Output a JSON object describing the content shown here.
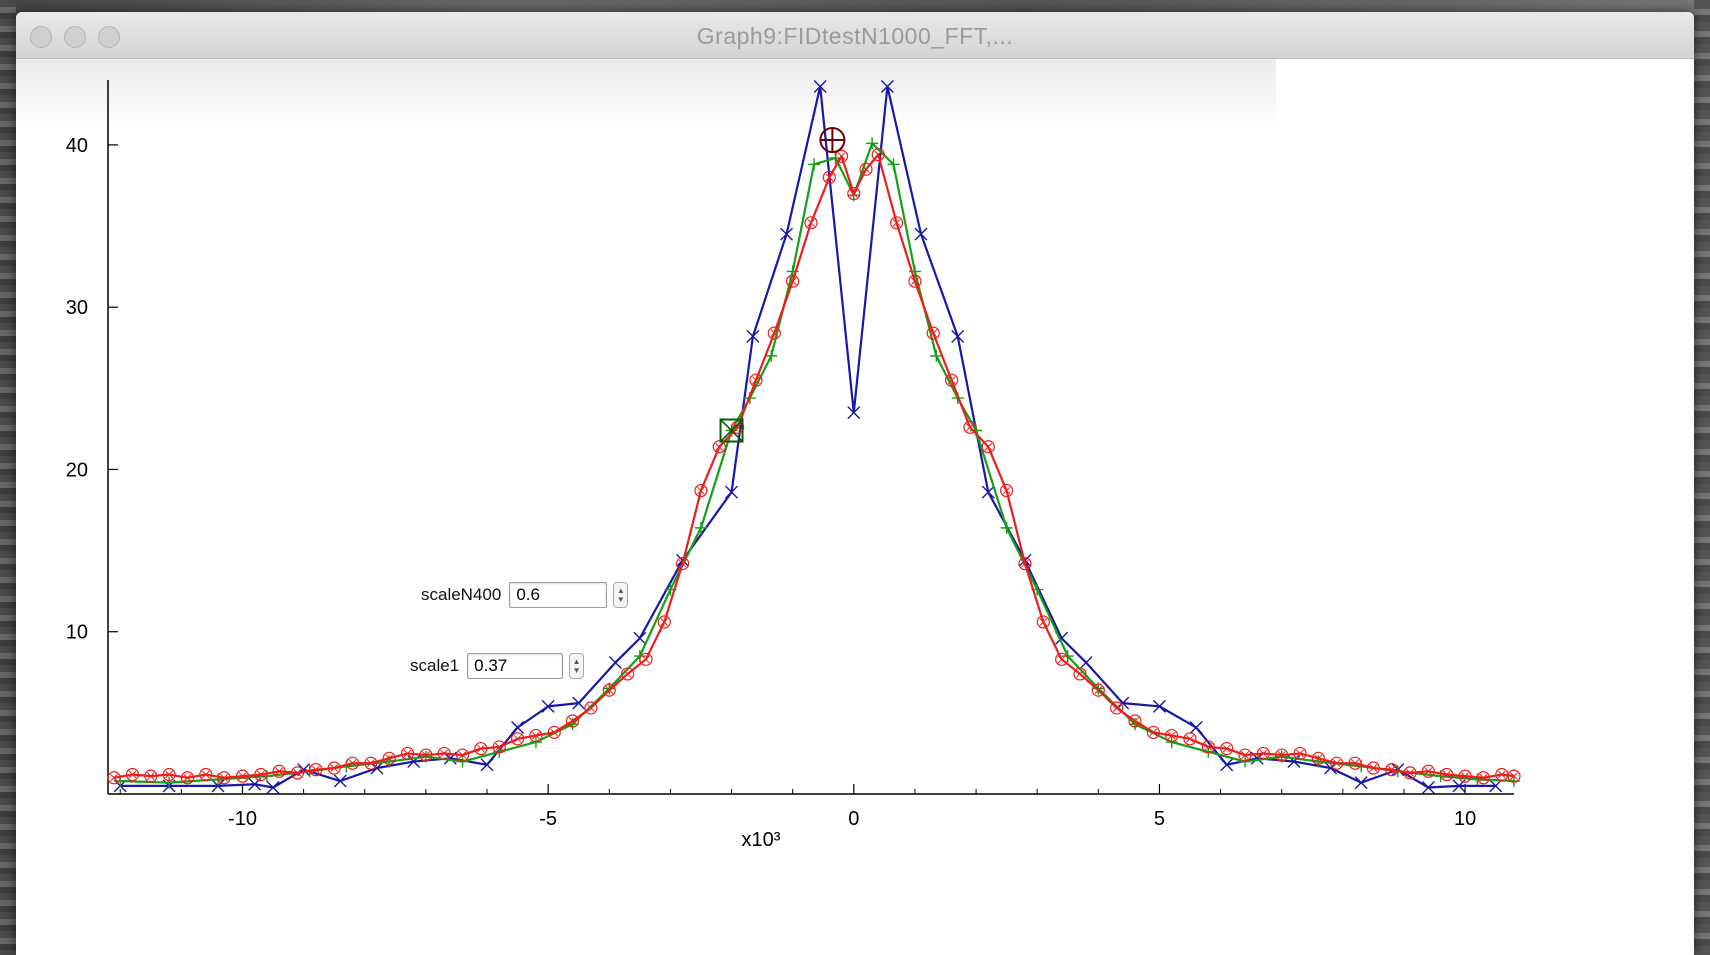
{
  "window": {
    "title": "Graph9:FIDtestN1000_FFT,..."
  },
  "controls": [
    {
      "label": "scaleN400",
      "value": "0.6"
    },
    {
      "label": "scale1",
      "value": "0.37"
    }
  ],
  "colors": {
    "blue": "#1717a8",
    "green": "#15a015",
    "red": "#ee1c1c",
    "cursorA": "#6b0000",
    "cursorB": "#0a5a0a"
  },
  "icons": {
    "stepper": "up-down-arrows-icon",
    "cursor_a": "crosshair-circle-icon",
    "cursor_b": "crossed-square-icon"
  },
  "chart_data": {
    "type": "line",
    "x_multiplier_label": "x10³",
    "x_multiplier": 1000,
    "xlim": [
      -12200,
      10800
    ],
    "ylim": [
      0,
      44
    ],
    "x_ticks": [
      -10,
      -5,
      0,
      5,
      10
    ],
    "y_ticks": [
      10,
      20,
      30,
      40
    ],
    "grid": false,
    "series": [
      {
        "color": "blue",
        "marker": "x",
        "points": [
          [
            -12000,
            0.5
          ],
          [
            -11200,
            0.5
          ],
          [
            -10400,
            0.5
          ],
          [
            -9800,
            0.6
          ],
          [
            -9500,
            0.4
          ],
          [
            -9000,
            1.5
          ],
          [
            -8400,
            0.8
          ],
          [
            -7800,
            1.6
          ],
          [
            -7200,
            2.0
          ],
          [
            -6600,
            2.2
          ],
          [
            -6000,
            1.8
          ],
          [
            -5500,
            4.1
          ],
          [
            -5000,
            5.4
          ],
          [
            -4500,
            5.6
          ],
          [
            -3900,
            8.1
          ],
          [
            -3500,
            9.6
          ],
          [
            -2800,
            14.4
          ],
          [
            -2000,
            18.6
          ],
          [
            -1650,
            28.2
          ],
          [
            -1100,
            34.5
          ],
          [
            -550,
            43.6
          ],
          [
            0,
            23.5
          ],
          [
            550,
            43.6
          ],
          [
            1100,
            34.5
          ],
          [
            1700,
            28.2
          ],
          [
            2200,
            18.6
          ],
          [
            2800,
            14.4
          ],
          [
            3400,
            9.6
          ],
          [
            3800,
            8.1
          ],
          [
            4400,
            5.6
          ],
          [
            5000,
            5.4
          ],
          [
            5600,
            4.1
          ],
          [
            6100,
            1.8
          ],
          [
            6600,
            2.2
          ],
          [
            7200,
            2.0
          ],
          [
            7800,
            1.6
          ],
          [
            8300,
            0.7
          ],
          [
            8900,
            1.5
          ],
          [
            9400,
            0.4
          ],
          [
            9900,
            0.5
          ],
          [
            10500,
            0.5
          ]
        ]
      },
      {
        "color": "green",
        "marker": "plus",
        "points": [
          [
            -12000,
            0.8
          ],
          [
            -11200,
            0.7
          ],
          [
            -10400,
            0.9
          ],
          [
            -9600,
            1.1
          ],
          [
            -8900,
            1.4
          ],
          [
            -8300,
            1.7
          ],
          [
            -7600,
            2.0
          ],
          [
            -7000,
            2.3
          ],
          [
            -6400,
            2.0
          ],
          [
            -5800,
            2.6
          ],
          [
            -5200,
            3.2
          ],
          [
            -4600,
            4.3
          ],
          [
            -4000,
            6.5
          ],
          [
            -3500,
            8.5
          ],
          [
            -3000,
            12.6
          ],
          [
            -2500,
            16.4
          ],
          [
            -2000,
            22.4
          ],
          [
            -1700,
            24.4
          ],
          [
            -1350,
            27.0
          ],
          [
            -1000,
            32.2
          ],
          [
            -650,
            38.8
          ],
          [
            -300,
            39.2
          ],
          [
            0,
            36.9
          ],
          [
            300,
            40.1
          ],
          [
            650,
            38.8
          ],
          [
            1000,
            32.2
          ],
          [
            1350,
            27.0
          ],
          [
            1700,
            24.4
          ],
          [
            2000,
            22.4
          ],
          [
            2500,
            16.4
          ],
          [
            3000,
            12.6
          ],
          [
            3500,
            8.5
          ],
          [
            4000,
            6.5
          ],
          [
            4600,
            4.3
          ],
          [
            5200,
            3.2
          ],
          [
            5800,
            2.6
          ],
          [
            6400,
            2.0
          ],
          [
            7000,
            2.3
          ],
          [
            7600,
            2.0
          ],
          [
            8300,
            1.7
          ],
          [
            8900,
            1.4
          ],
          [
            9600,
            1.1
          ],
          [
            10200,
            0.9
          ],
          [
            10800,
            0.8
          ]
        ]
      },
      {
        "color": "red",
        "marker": "circle",
        "points": [
          [
            -12100,
            1.0
          ],
          [
            -11800,
            1.2
          ],
          [
            -11500,
            1.1
          ],
          [
            -11200,
            1.2
          ],
          [
            -10900,
            1.0
          ],
          [
            -10600,
            1.2
          ],
          [
            -10300,
            1.0
          ],
          [
            -10000,
            1.1
          ],
          [
            -9700,
            1.2
          ],
          [
            -9400,
            1.4
          ],
          [
            -9100,
            1.3
          ],
          [
            -8800,
            1.5
          ],
          [
            -8500,
            1.6
          ],
          [
            -8200,
            1.9
          ],
          [
            -7900,
            1.9
          ],
          [
            -7600,
            2.2
          ],
          [
            -7300,
            2.5
          ],
          [
            -7000,
            2.4
          ],
          [
            -6700,
            2.5
          ],
          [
            -6400,
            2.4
          ],
          [
            -6100,
            2.8
          ],
          [
            -5800,
            2.9
          ],
          [
            -5500,
            3.4
          ],
          [
            -5200,
            3.6
          ],
          [
            -4900,
            3.8
          ],
          [
            -4600,
            4.5
          ],
          [
            -4300,
            5.3
          ],
          [
            -4000,
            6.4
          ],
          [
            -3700,
            7.4
          ],
          [
            -3400,
            8.3
          ],
          [
            -3100,
            10.6
          ],
          [
            -2800,
            14.2
          ],
          [
            -2500,
            18.7
          ],
          [
            -2200,
            21.4
          ],
          [
            -1900,
            22.6
          ],
          [
            -1600,
            25.5
          ],
          [
            -1300,
            28.4
          ],
          [
            -1000,
            31.6
          ],
          [
            -700,
            35.2
          ],
          [
            -400,
            38.0
          ],
          [
            -200,
            39.3
          ],
          [
            0,
            37.0
          ],
          [
            200,
            38.5
          ],
          [
            400,
            39.4
          ],
          [
            700,
            35.2
          ],
          [
            1000,
            31.6
          ],
          [
            1300,
            28.4
          ],
          [
            1600,
            25.5
          ],
          [
            1900,
            22.6
          ],
          [
            2200,
            21.4
          ],
          [
            2500,
            18.7
          ],
          [
            2800,
            14.2
          ],
          [
            3100,
            10.6
          ],
          [
            3400,
            8.3
          ],
          [
            3700,
            7.4
          ],
          [
            4000,
            6.4
          ],
          [
            4300,
            5.3
          ],
          [
            4600,
            4.5
          ],
          [
            4900,
            3.8
          ],
          [
            5200,
            3.6
          ],
          [
            5500,
            3.4
          ],
          [
            5800,
            2.9
          ],
          [
            6100,
            2.8
          ],
          [
            6400,
            2.4
          ],
          [
            6700,
            2.5
          ],
          [
            7000,
            2.4
          ],
          [
            7300,
            2.5
          ],
          [
            7600,
            2.2
          ],
          [
            7900,
            1.9
          ],
          [
            8200,
            1.9
          ],
          [
            8500,
            1.6
          ],
          [
            8800,
            1.5
          ],
          [
            9100,
            1.3
          ],
          [
            9400,
            1.4
          ],
          [
            9700,
            1.2
          ],
          [
            10000,
            1.1
          ],
          [
            10300,
            1.0
          ],
          [
            10600,
            1.2
          ],
          [
            10800,
            1.1
          ]
        ]
      }
    ],
    "cursors": [
      {
        "marker": "circle-cross",
        "color": "cursorA",
        "x": -350,
        "y": 40.3
      },
      {
        "marker": "square-cross",
        "color": "cursorB",
        "x": -2000,
        "y": 22.4
      }
    ]
  }
}
